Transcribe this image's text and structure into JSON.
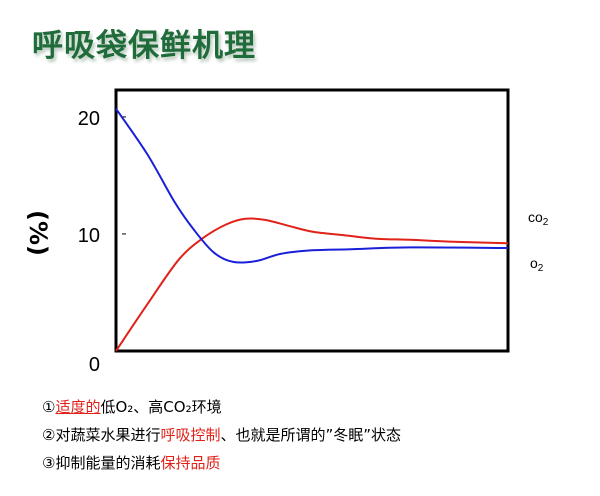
{
  "page_title": "呼吸袋保鲜机理",
  "chart_data": {
    "type": "line",
    "ylabel": "(%)",
    "yticks": [
      "20",
      "10",
      "0"
    ],
    "ylim": [
      0,
      22.3
    ],
    "xlim": [
      0,
      100
    ],
    "series": [
      {
        "name": "CO2",
        "color": "#e0221a",
        "x": [
          0,
          8,
          16,
          22,
          28,
          33,
          38,
          44,
          50,
          58,
          66,
          75,
          85,
          100
        ],
        "y": [
          0.0,
          4.0,
          7.8,
          9.6,
          10.8,
          11.3,
          11.2,
          10.7,
          10.2,
          9.9,
          9.6,
          9.5,
          9.35,
          9.2
        ]
      },
      {
        "name": "O2",
        "color": "#1a1fd9",
        "x": [
          0,
          8,
          15,
          20,
          25,
          30,
          36,
          42,
          50,
          60,
          75,
          100
        ],
        "y": [
          20.7,
          16.8,
          12.7,
          10.3,
          8.4,
          7.6,
          7.7,
          8.3,
          8.6,
          8.7,
          8.85,
          8.8
        ]
      }
    ]
  },
  "legend": {
    "co2_main": "co",
    "co2_sub": "2",
    "o2_main": "o",
    "o2_sub": "2"
  },
  "notes": {
    "n1_prefix": "①",
    "n1_red": "适度的",
    "n1_rest": "低O₂、高CO₂环境",
    "n2_prefix": "②对蔬菜水果进行",
    "n2_red": "呼吸控制",
    "n2_rest": "、也就是所谓的”冬眠”状态",
    "n3_prefix": "③抑制能量的消耗",
    "n3_red": "保持品质"
  }
}
